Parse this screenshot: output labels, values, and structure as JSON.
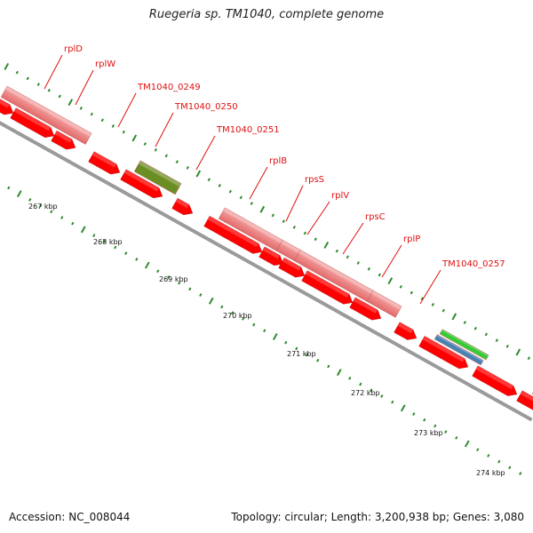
{
  "header": {
    "title": "Ruegeria sp. TM1040, complete genome"
  },
  "footer": {
    "accession": "Accession: NC_008044",
    "summary": "Topology: circular; Length: 3,200,938 bp; Genes: 3,080"
  },
  "gene_labels": [
    "rplD",
    "rplW",
    "TM1040_0249",
    "TM1040_0250",
    "TM1040_0251",
    "rplB",
    "rpsS",
    "rplV",
    "rpsC",
    "rplP",
    "TM1040_0257"
  ],
  "kbp_labels": [
    "267 kbp",
    "268 kbp",
    "269 kbp",
    "270 kbp",
    "271 kbp",
    "272 kbp",
    "273 kbp",
    "274 kbp"
  ],
  "colors": {
    "cds": "#ff0000",
    "gene_band": "#f08080",
    "olive": "#6b8e23",
    "green": "#33cc33",
    "blue": "#4682b4",
    "backbone": "#9a9a9a",
    "label": "#e01010",
    "tick": "#2e8b2e"
  }
}
